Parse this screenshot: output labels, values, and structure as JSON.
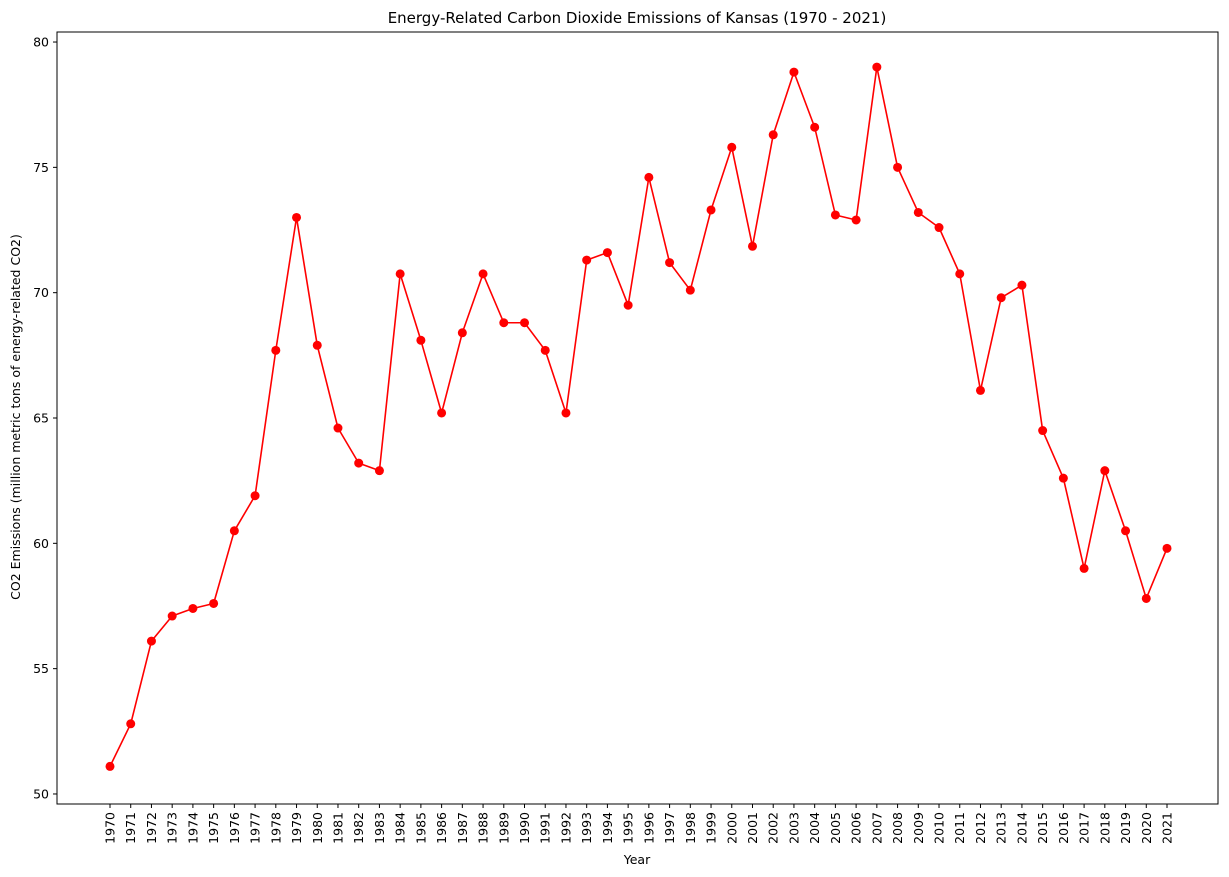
{
  "chart_data": {
    "type": "line",
    "title": "Energy-Related Carbon Dioxide Emissions of Kansas (1970 - 2021)",
    "xlabel": "Year",
    "ylabel": "CO2 Emissions (million metric tons of energy-related CO2)",
    "ylim": [
      49.6,
      80.4
    ],
    "yticks": [
      50,
      55,
      60,
      65,
      70,
      75,
      80
    ],
    "grid": false,
    "series": [
      {
        "name": "Kansas",
        "color": "#ff0000",
        "marker": "circle",
        "x": [
          "1970",
          "1971",
          "1972",
          "1973",
          "1974",
          "1975",
          "1976",
          "1977",
          "1978",
          "1979",
          "1980",
          "1981",
          "1982",
          "1983",
          "1984",
          "1985",
          "1986",
          "1987",
          "1988",
          "1989",
          "1990",
          "1991",
          "1992",
          "1993",
          "1994",
          "1995",
          "1996",
          "1997",
          "1998",
          "1999",
          "2000",
          "2001",
          "2002",
          "2003",
          "2004",
          "2005",
          "2006",
          "2007",
          "2008",
          "2009",
          "2010",
          "2011",
          "2012",
          "2013",
          "2014",
          "2015",
          "2016",
          "2017",
          "2018",
          "2019",
          "2020",
          "2021"
        ],
        "values": [
          51.1,
          52.8,
          56.1,
          57.1,
          57.4,
          57.6,
          60.5,
          61.9,
          67.7,
          73.0,
          67.9,
          64.6,
          63.2,
          62.9,
          70.75,
          68.1,
          65.2,
          68.4,
          70.75,
          68.8,
          68.8,
          67.7,
          65.2,
          71.3,
          71.6,
          69.5,
          74.6,
          71.2,
          70.1,
          73.3,
          75.8,
          71.85,
          76.3,
          78.8,
          76.6,
          73.1,
          72.9,
          79.0,
          75.0,
          73.2,
          72.6,
          70.75,
          66.1,
          69.8,
          70.3,
          64.5,
          62.6,
          59.0,
          62.9,
          60.5,
          57.8,
          59.8
        ]
      }
    ]
  }
}
